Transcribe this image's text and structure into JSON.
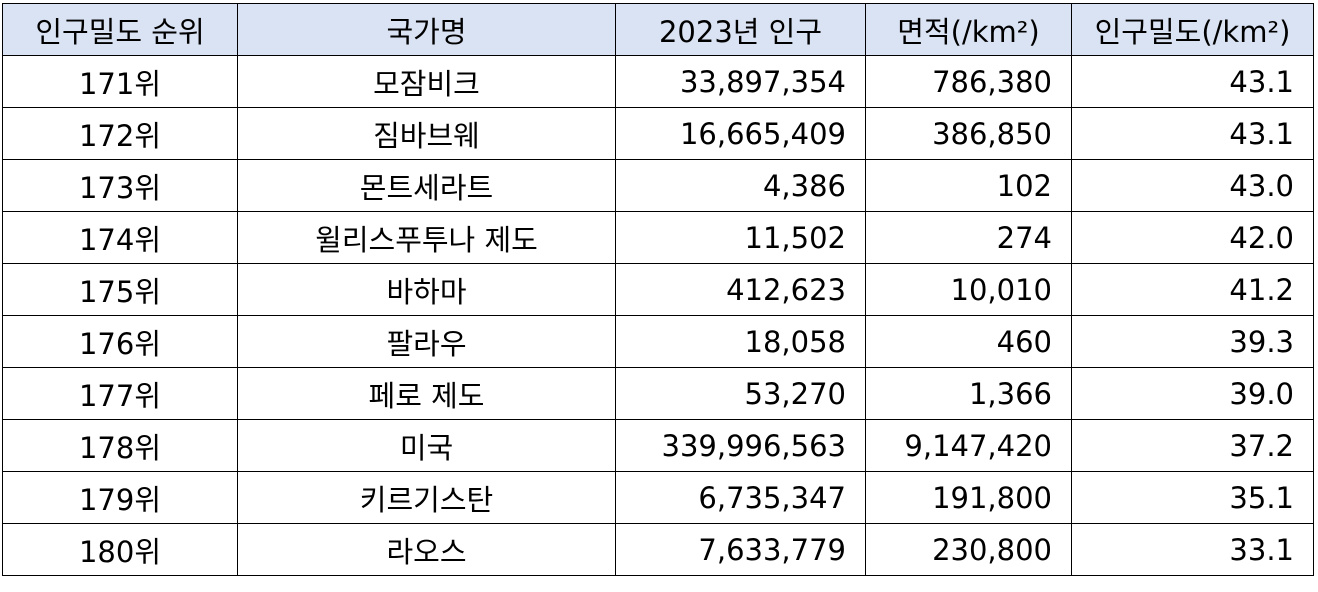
{
  "table": {
    "headers": [
      "인구밀도 순위",
      "국가명",
      "2023년 인구",
      "면적(/km²)",
      "인구밀도(/km²)"
    ],
    "rows": [
      [
        "171위",
        "모잠비크",
        "33,897,354",
        "786,380",
        "43.1"
      ],
      [
        "172위",
        "짐바브웨",
        "16,665,409",
        "386,850",
        "43.1"
      ],
      [
        "173위",
        "몬트세라트",
        "4,386",
        "102",
        "43.0"
      ],
      [
        "174위",
        "윌리스푸투나 제도",
        "11,502",
        "274",
        "42.0"
      ],
      [
        "175위",
        "바하마",
        "412,623",
        "10,010",
        "41.2"
      ],
      [
        "176위",
        "팔라우",
        "18,058",
        "460",
        "39.3"
      ],
      [
        "177위",
        "페로 제도",
        "53,270",
        "1,366",
        "39.0"
      ],
      [
        "178위",
        "미국",
        "339,996,563",
        "9,147,420",
        "37.2"
      ],
      [
        "179위",
        "키르기스탄",
        "6,735,347",
        "191,800",
        "35.1"
      ],
      [
        "180위",
        "라오스",
        "7,633,779",
        "230,800",
        "33.1"
      ]
    ]
  },
  "colors": {
    "header_background": "#dae3f3",
    "border": "#000000",
    "text": "#000000"
  }
}
